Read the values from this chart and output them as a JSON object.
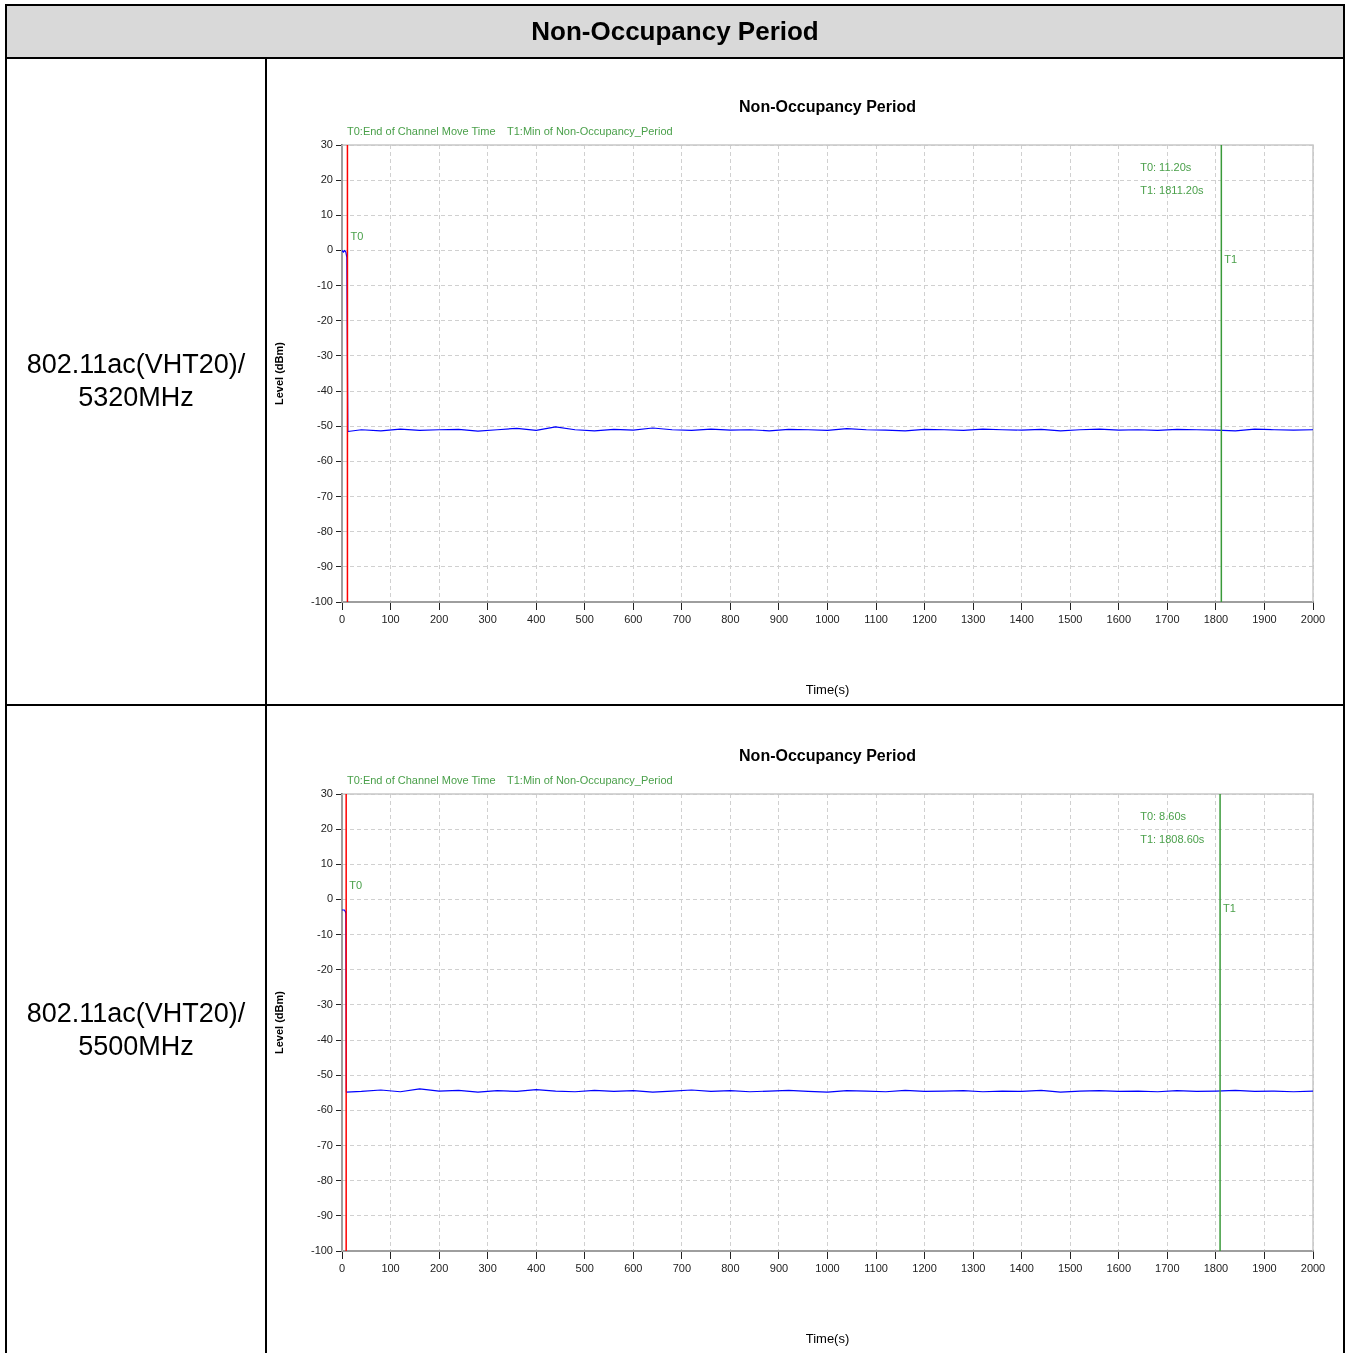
{
  "chart_data": [
    {
      "type": "other",
      "title": "Non-Occupancy Period"
    },
    {
      "type": "line",
      "title": "Non-Occupancy Period",
      "subtitle": "802.11ac(VHT20)/ 5320MHz",
      "xlabel": "Time(s)",
      "ylabel": "Level (dBm)",
      "x": [
        0,
        3,
        5,
        8,
        10,
        12,
        40,
        80,
        120,
        160,
        200,
        240,
        280,
        320,
        360,
        400,
        440,
        480,
        520,
        560,
        600,
        640,
        680,
        720,
        760,
        800,
        840,
        880,
        920,
        960,
        1000,
        1040,
        1080,
        1120,
        1160,
        1200,
        1240,
        1280,
        1320,
        1360,
        1400,
        1440,
        1480,
        1520,
        1560,
        1600,
        1640,
        1680,
        1720,
        1760,
        1800,
        1840,
        1880,
        1920,
        1960,
        2000
      ],
      "series": [
        {
          "color": "#0000ff",
          "values": [
            0,
            -0.5,
            0,
            -0.5,
            -2,
            -51.5,
            -51,
            -51.3,
            -50.8,
            -51.2,
            -51,
            -50.9,
            -51.4,
            -51,
            -50.6,
            -51.2,
            -50.2,
            -51,
            -51.3,
            -50.9,
            -51.1,
            -50.5,
            -51,
            -51.2,
            -50.8,
            -51.1,
            -51,
            -51.3,
            -50.9,
            -51,
            -51.2,
            -50.7,
            -51,
            -51.1,
            -51.3,
            -50.9,
            -51,
            -51.2,
            -50.8,
            -51,
            -51.1,
            -50.9,
            -51.3,
            -51,
            -50.8,
            -51.1,
            -51,
            -51.2,
            -50.9,
            -51,
            -51.1,
            -51.3,
            -50.8,
            -51,
            -51.1,
            -51
          ]
        }
      ],
      "xlim": [
        0,
        2000
      ],
      "xticks": [
        0,
        100,
        200,
        300,
        400,
        500,
        600,
        700,
        800,
        900,
        1000,
        1100,
        1200,
        1300,
        1400,
        1500,
        1600,
        1700,
        1800,
        1900,
        2000
      ],
      "ylim": [
        -100,
        30
      ],
      "yticks": [
        -100,
        -90,
        -80,
        -70,
        -60,
        -50,
        -40,
        -30,
        -20,
        -10,
        0,
        10,
        20,
        30
      ],
      "grid": true,
      "marker": "none",
      "ref_lines": [
        {
          "axis": "x",
          "value": 11.2,
          "label": "T0",
          "color": "#ff0000"
        },
        {
          "axis": "x",
          "value": 1811.2,
          "label": "T1",
          "color": "#3a9a3a"
        }
      ],
      "annotations": [
        "T0:End of Channel Move Time",
        "T1:Min of Non-Occupancy_Period",
        "T0: 11.20s",
        "T1: 1811.20s"
      ]
    },
    {
      "type": "line",
      "title": "Non-Occupancy Period",
      "subtitle": "802.11ac(VHT20)/ 5500MHz",
      "xlabel": "Time(s)",
      "ylabel": "Level (dBm)",
      "x": [
        0,
        3,
        5,
        7,
        8,
        9,
        40,
        80,
        120,
        160,
        200,
        240,
        280,
        320,
        360,
        400,
        440,
        480,
        520,
        560,
        600,
        640,
        680,
        720,
        760,
        800,
        840,
        880,
        920,
        960,
        1000,
        1040,
        1080,
        1120,
        1160,
        1200,
        1240,
        1280,
        1320,
        1360,
        1400,
        1440,
        1480,
        1520,
        1560,
        1600,
        1640,
        1680,
        1720,
        1760,
        1800,
        1840,
        1880,
        1920,
        1960,
        2000
      ],
      "series": [
        {
          "color": "#0000ff",
          "values": [
            -3,
            -3,
            -3,
            -3.5,
            -4,
            -54.8,
            -54.6,
            -54.2,
            -54.7,
            -53.9,
            -54.5,
            -54.3,
            -54.8,
            -54.4,
            -54.6,
            -54.1,
            -54.5,
            -54.7,
            -54.3,
            -54.6,
            -54.4,
            -54.8,
            -54.5,
            -54.2,
            -54.6,
            -54.4,
            -54.7,
            -54.5,
            -54.3,
            -54.6,
            -54.8,
            -54.4,
            -54.5,
            -54.7,
            -54.3,
            -54.6,
            -54.5,
            -54.4,
            -54.7,
            -54.5,
            -54.6,
            -54.3,
            -54.8,
            -54.5,
            -54.4,
            -54.6,
            -54.5,
            -54.7,
            -54.4,
            -54.6,
            -54.5,
            -54.3,
            -54.6,
            -54.5,
            -54.7,
            -54.5
          ]
        }
      ],
      "xlim": [
        0,
        2000
      ],
      "xticks": [
        0,
        100,
        200,
        300,
        400,
        500,
        600,
        700,
        800,
        900,
        1000,
        1100,
        1200,
        1300,
        1400,
        1500,
        1600,
        1700,
        1800,
        1900,
        2000
      ],
      "ylim": [
        -100,
        30
      ],
      "yticks": [
        -100,
        -90,
        -80,
        -70,
        -60,
        -50,
        -40,
        -30,
        -20,
        -10,
        0,
        10,
        20,
        30
      ],
      "grid": true,
      "marker": "none",
      "ref_lines": [
        {
          "axis": "x",
          "value": 8.6,
          "label": "T0",
          "color": "#ff0000"
        },
        {
          "axis": "x",
          "value": 1808.6,
          "label": "T1",
          "color": "#3a9a3a"
        }
      ],
      "annotations": [
        "T0:End of Channel Move Time",
        "T1:Min of Non-Occupancy_Period",
        "T0: 8.60s",
        "T1: 1808.60s"
      ]
    }
  ]
}
